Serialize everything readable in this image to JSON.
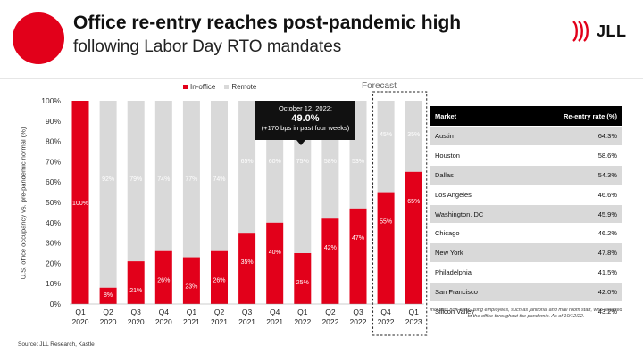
{
  "header": {
    "title": "Office re-entry reaches post-pandemic high",
    "subtitle": "following Labor Day RTO mandates",
    "logo_text": "JLL"
  },
  "colors": {
    "in_office": "#e2001a",
    "remote": "#d9d9d9",
    "text_dark": "#111111"
  },
  "legend": {
    "in_office": "In-office",
    "remote": "Remote"
  },
  "forecast_label": "Forecast",
  "callout": {
    "date": "October 12, 2022:",
    "value": "49.0%",
    "note": "(+170 bps in past four weeks)"
  },
  "chart_data": {
    "type": "bar",
    "stacked": true,
    "categories": [
      "Q1 2020",
      "Q2 2020",
      "Q3 2020",
      "Q4 2020",
      "Q1 2021",
      "Q2 2021",
      "Q3 2021",
      "Q4 2021",
      "Q1 2022",
      "Q2 2022",
      "Q3 2022",
      "Q4 2022",
      "Q1 2023"
    ],
    "category_lines": [
      [
        "Q1",
        "2020"
      ],
      [
        "Q2",
        "2020"
      ],
      [
        "Q3",
        "2020"
      ],
      [
        "Q4",
        "2020"
      ],
      [
        "Q1",
        "2021"
      ],
      [
        "Q2",
        "2021"
      ],
      [
        "Q3",
        "2021"
      ],
      [
        "Q4",
        "2021"
      ],
      [
        "Q1",
        "2022"
      ],
      [
        "Q2",
        "2022"
      ],
      [
        "Q3",
        "2022"
      ],
      [
        "Q4",
        "2022"
      ],
      [
        "Q1",
        "2023"
      ]
    ],
    "series": [
      {
        "name": "In-office",
        "values": [
          100,
          8,
          21,
          26,
          23,
          26,
          35,
          40,
          25,
          42,
          47,
          55,
          65
        ],
        "labels": [
          "100%",
          "8%",
          "21%",
          "26%",
          "23%",
          "26%",
          "35%",
          "40%",
          "25%",
          "42%",
          "47%",
          "55%",
          "65%"
        ]
      },
      {
        "name": "Remote",
        "values": [
          0,
          92,
          79,
          74,
          77,
          74,
          65,
          60,
          75,
          58,
          53,
          45,
          35
        ],
        "labels": [
          "",
          "92%",
          "79%",
          "74%",
          "77%",
          "74%",
          "65%",
          "60%",
          "75%",
          "58%",
          "53%",
          "45%",
          "35%"
        ]
      }
    ],
    "ylabel": "U.S. office occupancy vs. pre-pandemic normal (%)",
    "ylim": [
      0,
      100
    ],
    "yticks": [
      "0%",
      "10%",
      "20%",
      "30%",
      "40%",
      "50%",
      "60%",
      "70%",
      "80%",
      "90%",
      "100%"
    ],
    "forecast_categories": [
      "Q4 2022",
      "Q1 2023"
    ]
  },
  "table": {
    "headers": [
      "Market",
      "Re-entry rate (%)"
    ],
    "rows": [
      [
        "Austin",
        "64.3%"
      ],
      [
        "Houston",
        "58.6%"
      ],
      [
        "Dallas",
        "54.3%"
      ],
      [
        "Los Angeles",
        "46.6%"
      ],
      [
        "Washington, DC",
        "45.9%"
      ],
      [
        "Chicago",
        "46.2%"
      ],
      [
        "New York",
        "47.8%"
      ],
      [
        "Philadelphia",
        "41.5%"
      ],
      [
        "San Francisco",
        "42.0%"
      ],
      [
        "Silicon Valley",
        "43.2%"
      ]
    ]
  },
  "footnote": "Includes non-desk-using employees, such as janitorial and mail room staff, who reported to the office throughout the pandemic. As of 10/12/22.",
  "source": "Source: JLL Research, Kastle"
}
